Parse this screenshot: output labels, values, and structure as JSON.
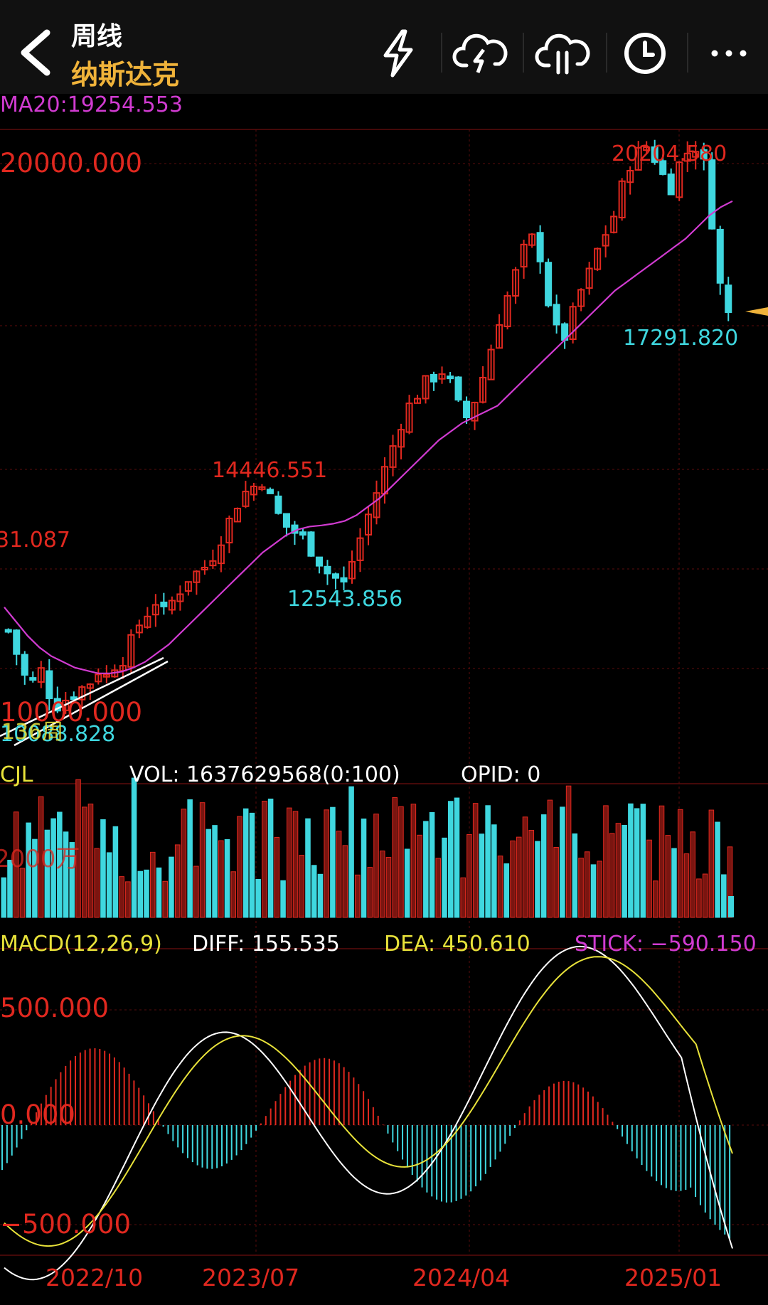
{
  "header": {
    "period": "周线",
    "name": "纳斯达克"
  },
  "icons": [
    "back-chevron-icon",
    "lightning-icon",
    "cloud-download-icon",
    "cloud-upload-icon",
    "clock-icon",
    "more-dots-icon"
  ],
  "ma_label": "MA20:19254.553",
  "main_labels": {
    "y_top": "20000.000",
    "y_bottom": "10000.000",
    "high_2025": "20204.580",
    "low_2025": "17291.820",
    "high_2023": "14446.551",
    "low_2023": "12543.856",
    "left_partial": "31.087",
    "left_low": "10088.828",
    "left_overlay": "136周"
  },
  "volume": {
    "title": "CJL",
    "vol": "VOL: 1637629568(0:100)",
    "opid": "OPID: 0",
    "axis_partial": "2000万"
  },
  "macd": {
    "title": "MACD(12,26,9)",
    "diff": "DIFF: 155.535",
    "dea": "DEA: 450.610",
    "stick": "STICK: −590.150",
    "y_top": "500.000",
    "y_mid": "0.000",
    "y_bottom": "−500.000"
  },
  "dates": [
    "2022/10",
    "2023/07",
    "2024/04",
    "2025/01"
  ],
  "colors": {
    "up": "#e0281f",
    "down": "#3fd7df",
    "ma": "#d13bd1",
    "diff": "#ffffff",
    "dea": "#e8e23a",
    "accent": "#f0b33a"
  },
  "chart_data": {
    "type": "candlestick",
    "period": "weekly",
    "ylim": [
      9800,
      20500
    ],
    "price_points": [
      11800,
      11400,
      11000,
      10900,
      11100,
      10700,
      10500,
      10600,
      10700,
      10800,
      10900,
      11100,
      11000,
      11200,
      11300,
      11600,
      11900,
      12100,
      12300,
      12100,
      12300,
      12500,
      12700,
      12800,
      12900,
      13100,
      13400,
      13700,
      14000,
      14200,
      14300,
      14400,
      14100,
      13800,
      13600,
      13500,
      13400,
      13200,
      13000,
      12800,
      12700,
      12600,
      13000,
      13400,
      13800,
      14200,
      14600,
      15000,
      15400,
      15700,
      15900,
      16100,
      16200,
      16300,
      16100,
      15700,
      15500,
      15800,
      16200,
      16700,
      17200,
      17600,
      18000,
      18400,
      18600,
      18300,
      17500,
      17000,
      16900,
      17300,
      17700,
      18000,
      18400,
      18700,
      19000,
      19500,
      19900,
      20100,
      20200,
      20000,
      19700,
      19500,
      19900,
      20100,
      20200,
      19900,
      18900,
      17800,
      17300
    ],
    "ma20_points": [
      12200,
      11950,
      11700,
      11500,
      11350,
      11250,
      11150,
      11100,
      11050,
      11050,
      11080,
      11150,
      11250,
      11400,
      11550,
      11750,
      11950,
      12150,
      12350,
      12550,
      12750,
      12950,
      13150,
      13300,
      13450,
      13550,
      13600,
      13620,
      13650,
      13700,
      13800,
      13950,
      14100,
      14300,
      14500,
      14700,
      14900,
      15100,
      15250,
      15400,
      15500,
      15600,
      15700,
      15900,
      16100,
      16300,
      16500,
      16700,
      16900,
      17100,
      17300,
      17500,
      17700,
      17850,
      18000,
      18150,
      18300,
      18450,
      18600,
      18800,
      19000,
      19150,
      19254
    ],
    "volume": {
      "latest": 1637629568,
      "bars_seed": 21
    },
    "macd": {
      "diff_latest": 155.535,
      "dea_latest": 450.61,
      "stick_latest": -590.15,
      "ylim": [
        -700,
        850
      ]
    },
    "x_tick_labels": [
      "2022/10",
      "2023/07",
      "2024/04",
      "2025/01"
    ]
  }
}
